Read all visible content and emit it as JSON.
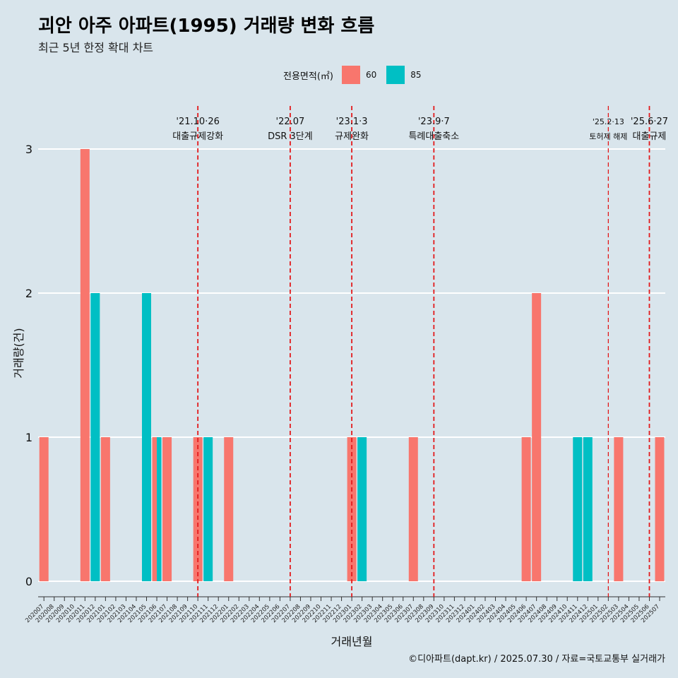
{
  "header": {
    "title": "괴안 아주 아파트(1995) 거래량 변화 흐름",
    "subtitle": "최근 5년 한정 확대 차트"
  },
  "caption": "©디아파트(dapt.kr) / 2025.07.30 / 자료=국토교통부 실거래가",
  "legend": {
    "title": "전용면적(㎡)",
    "items": [
      {
        "label": "60",
        "color": "#F8766D"
      },
      {
        "label": "85",
        "color": "#00BFC4"
      }
    ]
  },
  "chart_data": {
    "type": "bar",
    "xlabel": "거래년월",
    "ylabel": "거래량(건)",
    "ylim": [
      0,
      3
    ],
    "yticks": [
      0,
      1,
      2,
      3
    ],
    "grid": true,
    "legend_position": "top",
    "categories": [
      "202007",
      "202008",
      "202009",
      "202010",
      "202011",
      "202012",
      "202101",
      "202102",
      "202103",
      "202104",
      "202105",
      "202106",
      "202107",
      "202108",
      "202109",
      "202110",
      "202111",
      "202112",
      "202201",
      "202202",
      "202203",
      "202204",
      "202205",
      "202206",
      "202207",
      "202208",
      "202209",
      "202210",
      "202211",
      "202212",
      "202301",
      "202302",
      "202303",
      "202304",
      "202305",
      "202306",
      "202307",
      "202308",
      "202309",
      "202310",
      "202311",
      "202312",
      "202401",
      "202402",
      "202403",
      "202404",
      "202405",
      "202406",
      "202407",
      "202408",
      "202409",
      "202410",
      "202411",
      "202412",
      "202501",
      "202502",
      "202503",
      "202504",
      "202505",
      "202506",
      "202507"
    ],
    "series": [
      {
        "name": "60",
        "color": "#F8766D",
        "points": [
          [
            "202007",
            1
          ],
          [
            "202011",
            3
          ],
          [
            "202101",
            1
          ],
          [
            "202106",
            1
          ],
          [
            "202107",
            1
          ],
          [
            "202110",
            1
          ],
          [
            "202201",
            1
          ],
          [
            "202301",
            1
          ],
          [
            "202307",
            1
          ],
          [
            "202406",
            1
          ],
          [
            "202407",
            2
          ],
          [
            "202503",
            1
          ],
          [
            "202507",
            1
          ]
        ]
      },
      {
        "name": "85",
        "color": "#00BFC4",
        "points": [
          [
            "202012",
            2
          ],
          [
            "202105",
            2
          ],
          [
            "202106",
            1
          ],
          [
            "202111",
            1
          ],
          [
            "202302",
            1
          ],
          [
            "202411",
            1
          ],
          [
            "202412",
            1
          ]
        ]
      }
    ],
    "annotations": [
      {
        "month": "202110",
        "date": "'21.10·26",
        "label": "대출규제강화",
        "small": false
      },
      {
        "month": "202207",
        "date": "'22.07",
        "label": "DSR 3단계",
        "small": false
      },
      {
        "month": "202301",
        "date": "'23.1·3",
        "label": "규제완화",
        "small": false
      },
      {
        "month": "202309",
        "date": "'23.9·7",
        "label": "특례대출축소",
        "small": false
      },
      {
        "month": "202502",
        "date": "'25.2·13",
        "label": "토허제 해제",
        "small": true
      },
      {
        "month": "202506",
        "date": "'25.6·27",
        "label": "대출규제",
        "small": false
      }
    ]
  }
}
